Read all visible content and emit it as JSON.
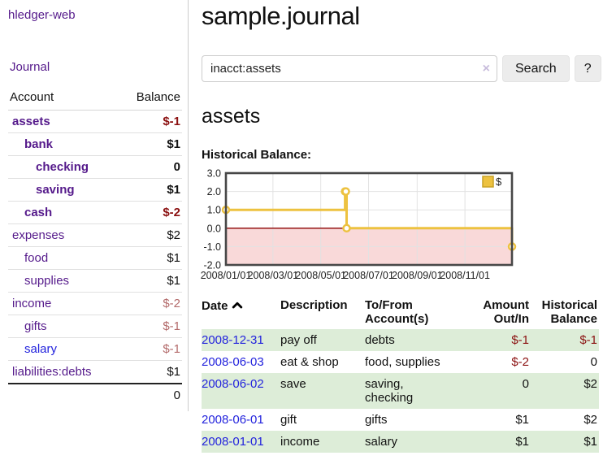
{
  "app": {
    "brand": "hledger-web"
  },
  "sidebar": {
    "journal_link": "Journal",
    "accounts_table": {
      "col_account": "Account",
      "col_balance": "Balance",
      "rows": [
        {
          "name": "assets",
          "balance": "$-1",
          "indent": 1,
          "bold": true,
          "balance_class": "neg-strong",
          "link_class": ""
        },
        {
          "name": "bank",
          "balance": "$1",
          "indent": 2,
          "bold": true,
          "balance_class": "",
          "link_class": ""
        },
        {
          "name": "checking",
          "balance": "0",
          "indent": 3,
          "bold": true,
          "balance_class": "",
          "link_class": ""
        },
        {
          "name": "saving",
          "balance": "$1",
          "indent": 3,
          "bold": true,
          "balance_class": "",
          "link_class": ""
        },
        {
          "name": "cash",
          "balance": "$-2",
          "indent": 2,
          "bold": true,
          "balance_class": "neg-strong",
          "link_class": ""
        },
        {
          "name": "expenses",
          "balance": "$2",
          "indent": 1,
          "bold": false,
          "balance_class": "",
          "link_class": ""
        },
        {
          "name": "food",
          "balance": "$1",
          "indent": 2,
          "bold": false,
          "balance_class": "",
          "link_class": ""
        },
        {
          "name": "supplies",
          "balance": "$1",
          "indent": 2,
          "bold": false,
          "balance_class": "",
          "link_class": ""
        },
        {
          "name": "income",
          "balance": "$-2",
          "indent": 1,
          "bold": false,
          "balance_class": "neg-soft",
          "link_class": ""
        },
        {
          "name": "gifts",
          "balance": "$-1",
          "indent": 2,
          "bold": false,
          "balance_class": "neg-soft",
          "link_class": ""
        },
        {
          "name": "salary",
          "balance": "$-1",
          "indent": 2,
          "bold": false,
          "balance_class": "neg-soft",
          "link_class": "blue"
        },
        {
          "name": "liabilities:debts",
          "balance": "$1",
          "indent": 1,
          "bold": false,
          "balance_class": "",
          "link_class": ""
        }
      ],
      "total": "0"
    }
  },
  "main": {
    "title": "sample.journal",
    "search": {
      "value": "inacct:assets",
      "clear_icon": "×",
      "button_label": "Search",
      "help_label": "?"
    },
    "account_heading": "assets",
    "chart_label": "Historical Balance:"
  },
  "chart_data": {
    "type": "line",
    "title": "Historical Balance:",
    "style": "step",
    "legend": [
      {
        "label": "$",
        "color": "#edc240"
      }
    ],
    "legend_position": "top-right",
    "grid": true,
    "ylim": [
      -2,
      3
    ],
    "y_ticks": [
      3.0,
      2.0,
      1.0,
      0.0,
      -1.0,
      -2.0
    ],
    "x_range_days": [
      0,
      365
    ],
    "x_ticks": [
      {
        "day": 0,
        "label": "2008/01/01"
      },
      {
        "day": 60,
        "label": "2008/03/01"
      },
      {
        "day": 121,
        "label": "2008/05/01"
      },
      {
        "day": 182,
        "label": "2008/07/01"
      },
      {
        "day": 244,
        "label": "2008/09/01"
      },
      {
        "day": 305,
        "label": "2008/11/01"
      }
    ],
    "series": [
      {
        "name": "$",
        "color": "#edc240",
        "points": [
          {
            "date": "2008-01-01",
            "day": 0,
            "value": 1
          },
          {
            "date": "2008-06-01",
            "day": 152,
            "value": 2
          },
          {
            "date": "2008-06-02",
            "day": 153,
            "value": 2
          },
          {
            "date": "2008-06-03",
            "day": 154,
            "value": 0
          },
          {
            "date": "2008-12-31",
            "day": 365,
            "value": -1
          }
        ]
      }
    ],
    "negative_region_fill": "#f9d9d9",
    "zero_line_color": "#8b0000",
    "gridline_color": "#e2e2e2",
    "border_color": "#474747"
  },
  "transactions": {
    "headers": {
      "date": "Date",
      "description": "Description",
      "accounts": "To/From Account(s)",
      "amount": "Amount Out/In",
      "balance": "Historical Balance"
    },
    "sort": {
      "column": "date",
      "direction": "ascending"
    },
    "rows": [
      {
        "date": "2008-12-31",
        "description": "pay off",
        "accounts": "debts",
        "amount": "$-1",
        "balance": "$-1"
      },
      {
        "date": "2008-06-03",
        "description": "eat & shop",
        "accounts": "food, supplies",
        "amount": "$-2",
        "balance": "0"
      },
      {
        "date": "2008-06-02",
        "description": "save",
        "accounts": "saving,\nchecking",
        "amount": "0",
        "balance": "$2"
      },
      {
        "date": "2008-06-01",
        "description": "gift",
        "accounts": "gifts",
        "amount": "$1",
        "balance": "$2"
      },
      {
        "date": "2008-01-01",
        "description": "income",
        "accounts": "salary",
        "amount": "$1",
        "balance": "$1"
      }
    ]
  },
  "colors": {
    "link_purple": "#551a8b",
    "link_blue": "#2323dd",
    "negative_strong": "#8b1111",
    "negative_soft": "#b36a6a",
    "stripe_green": "#ddedd8",
    "button_gray": "#ececec"
  }
}
